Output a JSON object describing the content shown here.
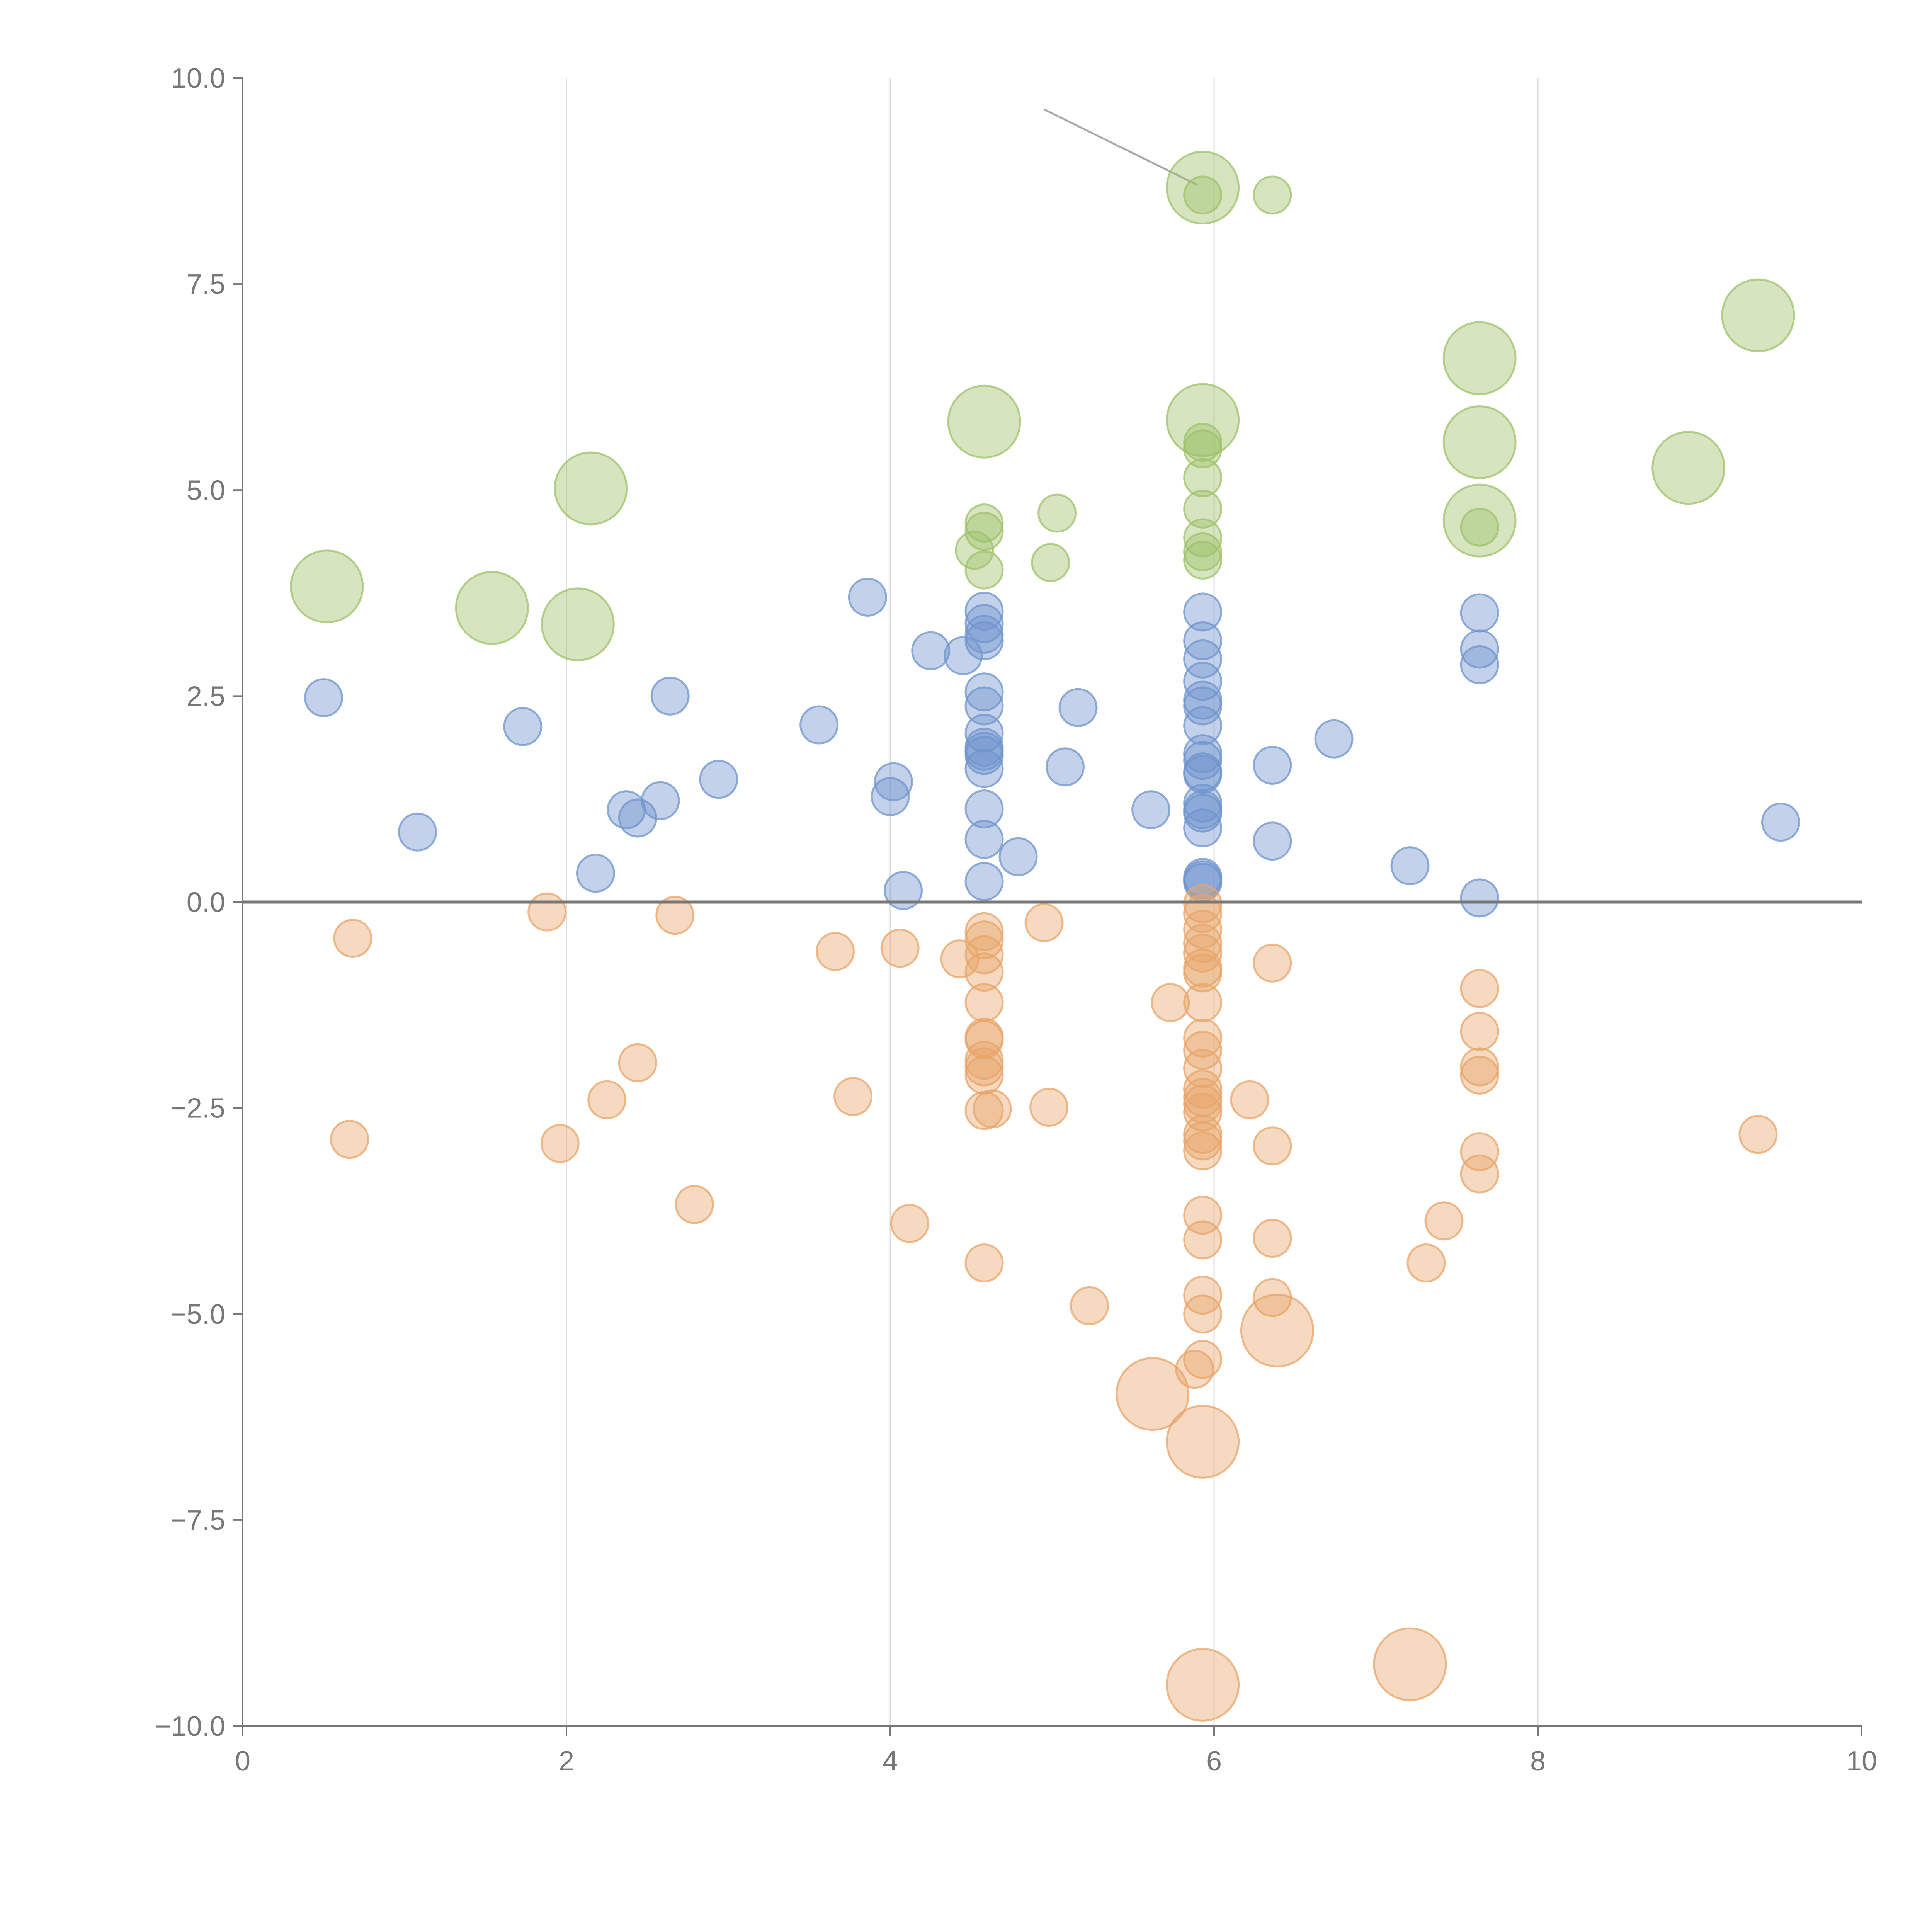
{
  "chart_data": {
    "type": "scatter",
    "title": "",
    "xlabel": "",
    "ylabel": "",
    "xlim": [
      0,
      10
    ],
    "ylim": [
      -10,
      10
    ],
    "x_ticks": [
      0,
      2,
      4,
      6,
      8,
      10
    ],
    "x_tick_labels": [
      "0",
      "2",
      "4",
      "6",
      "8",
      "10"
    ],
    "y_ticks": [
      10,
      7.5,
      5,
      2.5,
      0,
      -2.5,
      -5,
      -7.5,
      -10
    ],
    "y_tick_labels": [
      "10.0",
      "7.5",
      "5.0",
      "2.5",
      "0.0",
      "−2.5",
      "−5.0",
      "−7.5",
      "−10.0"
    ],
    "vertical_grid": true,
    "zero_line": true,
    "legend": "none",
    "callout": {
      "from": [
        4.95,
        9.62
      ],
      "to": [
        5.9,
        8.7
      ]
    },
    "series": [
      {
        "name": "green",
        "color": "#9dc26a",
        "points": [
          {
            "x": 0.52,
            "y": 3.83,
            "size": "large"
          },
          {
            "x": 1.54,
            "y": 3.57,
            "size": "large"
          },
          {
            "x": 2.07,
            "y": 3.37,
            "size": "large"
          },
          {
            "x": 2.15,
            "y": 5.02,
            "size": "large"
          },
          {
            "x": 4.58,
            "y": 5.83,
            "size": "large"
          },
          {
            "x": 4.58,
            "y": 4.6,
            "size": "small"
          },
          {
            "x": 4.58,
            "y": 4.5,
            "size": "small"
          },
          {
            "x": 4.52,
            "y": 4.27,
            "size": "small"
          },
          {
            "x": 4.58,
            "y": 4.03,
            "size": "small"
          },
          {
            "x": 5.03,
            "y": 4.72,
            "size": "small"
          },
          {
            "x": 4.99,
            "y": 4.12,
            "size": "small"
          },
          {
            "x": 5.93,
            "y": 8.67,
            "size": "large"
          },
          {
            "x": 5.93,
            "y": 8.58,
            "size": "small"
          },
          {
            "x": 6.36,
            "y": 8.58,
            "size": "small"
          },
          {
            "x": 5.93,
            "y": 5.85,
            "size": "large"
          },
          {
            "x": 5.93,
            "y": 5.58,
            "size": "small"
          },
          {
            "x": 5.93,
            "y": 5.5,
            "size": "small"
          },
          {
            "x": 5.93,
            "y": 5.15,
            "size": "small"
          },
          {
            "x": 5.93,
            "y": 4.77,
            "size": "small"
          },
          {
            "x": 5.93,
            "y": 4.42,
            "size": "small"
          },
          {
            "x": 5.93,
            "y": 4.25,
            "size": "small"
          },
          {
            "x": 5.93,
            "y": 4.15,
            "size": "small"
          },
          {
            "x": 7.64,
            "y": 6.6,
            "size": "large"
          },
          {
            "x": 7.64,
            "y": 5.58,
            "size": "large"
          },
          {
            "x": 7.64,
            "y": 4.63,
            "size": "large"
          },
          {
            "x": 7.64,
            "y": 4.55,
            "size": "small"
          },
          {
            "x": 8.93,
            "y": 5.27,
            "size": "large"
          },
          {
            "x": 9.36,
            "y": 7.12,
            "size": "large"
          }
        ]
      },
      {
        "name": "blue",
        "color": "#6f94cc",
        "points": [
          {
            "x": 0.5,
            "y": 2.48,
            "size": "small"
          },
          {
            "x": 1.08,
            "y": 0.85,
            "size": "small"
          },
          {
            "x": 1.73,
            "y": 2.13,
            "size": "small"
          },
          {
            "x": 2.18,
            "y": 0.35,
            "size": "small"
          },
          {
            "x": 2.37,
            "y": 1.12,
            "size": "small"
          },
          {
            "x": 2.44,
            "y": 1.02,
            "size": "small"
          },
          {
            "x": 2.58,
            "y": 1.23,
            "size": "small"
          },
          {
            "x": 2.64,
            "y": 2.5,
            "size": "small"
          },
          {
            "x": 2.94,
            "y": 1.49,
            "size": "small"
          },
          {
            "x": 3.56,
            "y": 2.15,
            "size": "small"
          },
          {
            "x": 3.86,
            "y": 3.7,
            "size": "small"
          },
          {
            "x": 4.0,
            "y": 1.28,
            "size": "small"
          },
          {
            "x": 4.02,
            "y": 1.46,
            "size": "small"
          },
          {
            "x": 4.08,
            "y": 0.14,
            "size": "small"
          },
          {
            "x": 4.25,
            "y": 3.05,
            "size": "small"
          },
          {
            "x": 4.45,
            "y": 2.99,
            "size": "small"
          },
          {
            "x": 4.58,
            "y": 3.53,
            "size": "small"
          },
          {
            "x": 4.58,
            "y": 3.38,
            "size": "small"
          },
          {
            "x": 4.58,
            "y": 3.25,
            "size": "small"
          },
          {
            "x": 4.58,
            "y": 3.17,
            "size": "small"
          },
          {
            "x": 4.58,
            "y": 2.55,
            "size": "small"
          },
          {
            "x": 4.58,
            "y": 2.38,
            "size": "small"
          },
          {
            "x": 4.58,
            "y": 2.05,
            "size": "small"
          },
          {
            "x": 4.58,
            "y": 1.88,
            "size": "small"
          },
          {
            "x": 4.58,
            "y": 1.83,
            "size": "small"
          },
          {
            "x": 4.58,
            "y": 1.78,
            "size": "small"
          },
          {
            "x": 4.58,
            "y": 1.62,
            "size": "small"
          },
          {
            "x": 4.58,
            "y": 1.13,
            "size": "small"
          },
          {
            "x": 4.58,
            "y": 0.76,
            "size": "small"
          },
          {
            "x": 4.58,
            "y": 0.25,
            "size": "small"
          },
          {
            "x": 4.79,
            "y": 0.55,
            "size": "small"
          },
          {
            "x": 5.08,
            "y": 1.64,
            "size": "small"
          },
          {
            "x": 5.16,
            "y": 2.36,
            "size": "small"
          },
          {
            "x": 5.61,
            "y": 1.12,
            "size": "small"
          },
          {
            "x": 5.93,
            "y": 3.52,
            "size": "small"
          },
          {
            "x": 5.93,
            "y": 3.17,
            "size": "small"
          },
          {
            "x": 5.93,
            "y": 2.95,
            "size": "small"
          },
          {
            "x": 5.93,
            "y": 2.68,
            "size": "small"
          },
          {
            "x": 5.93,
            "y": 2.45,
            "size": "small"
          },
          {
            "x": 5.93,
            "y": 2.38,
            "size": "small"
          },
          {
            "x": 5.93,
            "y": 2.14,
            "size": "small"
          },
          {
            "x": 5.93,
            "y": 1.8,
            "size": "small"
          },
          {
            "x": 5.93,
            "y": 1.72,
            "size": "small"
          },
          {
            "x": 5.93,
            "y": 1.58,
            "size": "small"
          },
          {
            "x": 5.93,
            "y": 1.55,
            "size": "small"
          },
          {
            "x": 5.93,
            "y": 1.2,
            "size": "small"
          },
          {
            "x": 5.93,
            "y": 1.12,
            "size": "small"
          },
          {
            "x": 5.93,
            "y": 1.08,
            "size": "small"
          },
          {
            "x": 5.93,
            "y": 0.9,
            "size": "small"
          },
          {
            "x": 5.93,
            "y": 0.3,
            "size": "small"
          },
          {
            "x": 5.93,
            "y": 0.27,
            "size": "small"
          },
          {
            "x": 5.93,
            "y": 0.24,
            "size": "small"
          },
          {
            "x": 6.36,
            "y": 1.66,
            "size": "small"
          },
          {
            "x": 6.36,
            "y": 0.74,
            "size": "small"
          },
          {
            "x": 6.74,
            "y": 1.98,
            "size": "small"
          },
          {
            "x": 7.21,
            "y": 0.44,
            "size": "small"
          },
          {
            "x": 7.64,
            "y": 3.51,
            "size": "small"
          },
          {
            "x": 7.64,
            "y": 3.07,
            "size": "small"
          },
          {
            "x": 7.64,
            "y": 2.88,
            "size": "small"
          },
          {
            "x": 7.64,
            "y": 0.05,
            "size": "small"
          },
          {
            "x": 9.5,
            "y": 0.97,
            "size": "small"
          }
        ]
      },
      {
        "name": "orange",
        "color": "#e8a46a",
        "points": [
          {
            "x": 0.68,
            "y": -0.44,
            "size": "small"
          },
          {
            "x": 0.66,
            "y": -2.88,
            "size": "small"
          },
          {
            "x": 1.88,
            "y": -0.12,
            "size": "small"
          },
          {
            "x": 1.96,
            "y": -2.93,
            "size": "small"
          },
          {
            "x": 2.25,
            "y": -2.4,
            "size": "small"
          },
          {
            "x": 2.44,
            "y": -1.95,
            "size": "small"
          },
          {
            "x": 2.67,
            "y": -0.16,
            "size": "small"
          },
          {
            "x": 2.79,
            "y": -3.67,
            "size": "small"
          },
          {
            "x": 3.66,
            "y": -0.6,
            "size": "small"
          },
          {
            "x": 3.77,
            "y": -2.36,
            "size": "small"
          },
          {
            "x": 4.06,
            "y": -0.56,
            "size": "small"
          },
          {
            "x": 4.12,
            "y": -3.9,
            "size": "small"
          },
          {
            "x": 4.43,
            "y": -0.69,
            "size": "small"
          },
          {
            "x": 4.58,
            "y": -0.36,
            "size": "small"
          },
          {
            "x": 4.58,
            "y": -0.46,
            "size": "small"
          },
          {
            "x": 4.58,
            "y": -0.64,
            "size": "small"
          },
          {
            "x": 4.58,
            "y": -0.85,
            "size": "small"
          },
          {
            "x": 4.58,
            "y": -1.22,
            "size": "small"
          },
          {
            "x": 4.58,
            "y": -1.64,
            "size": "small"
          },
          {
            "x": 4.58,
            "y": -1.67,
            "size": "small"
          },
          {
            "x": 4.58,
            "y": -1.92,
            "size": "small"
          },
          {
            "x": 4.58,
            "y": -2.0,
            "size": "small"
          },
          {
            "x": 4.58,
            "y": -2.1,
            "size": "small"
          },
          {
            "x": 4.58,
            "y": -2.53,
            "size": "small"
          },
          {
            "x": 4.63,
            "y": -2.51,
            "size": "small"
          },
          {
            "x": 4.58,
            "y": -4.38,
            "size": "small"
          },
          {
            "x": 4.95,
            "y": -0.25,
            "size": "small"
          },
          {
            "x": 4.98,
            "y": -2.49,
            "size": "small"
          },
          {
            "x": 5.23,
            "y": -4.9,
            "size": "small"
          },
          {
            "x": 5.73,
            "y": -1.22,
            "size": "small"
          },
          {
            "x": 5.93,
            "y": -0.02,
            "size": "small"
          },
          {
            "x": 5.93,
            "y": -0.14,
            "size": "small"
          },
          {
            "x": 5.93,
            "y": -0.33,
            "size": "small"
          },
          {
            "x": 5.93,
            "y": -0.5,
            "size": "small"
          },
          {
            "x": 5.93,
            "y": -0.62,
            "size": "small"
          },
          {
            "x": 5.93,
            "y": -0.8,
            "size": "small"
          },
          {
            "x": 5.93,
            "y": -0.86,
            "size": "small"
          },
          {
            "x": 5.93,
            "y": -1.22,
            "size": "small"
          },
          {
            "x": 5.93,
            "y": -1.65,
            "size": "small"
          },
          {
            "x": 5.93,
            "y": -1.8,
            "size": "small"
          },
          {
            "x": 5.93,
            "y": -2.02,
            "size": "small"
          },
          {
            "x": 5.93,
            "y": -2.27,
            "size": "small"
          },
          {
            "x": 5.93,
            "y": -2.37,
            "size": "small"
          },
          {
            "x": 5.93,
            "y": -2.45,
            "size": "small"
          },
          {
            "x": 5.93,
            "y": -2.55,
            "size": "small"
          },
          {
            "x": 5.93,
            "y": -2.82,
            "size": "small"
          },
          {
            "x": 5.93,
            "y": -2.9,
            "size": "small"
          },
          {
            "x": 5.93,
            "y": -3.02,
            "size": "small"
          },
          {
            "x": 5.93,
            "y": -3.8,
            "size": "small"
          },
          {
            "x": 5.93,
            "y": -4.1,
            "size": "small"
          },
          {
            "x": 5.93,
            "y": -4.77,
            "size": "small"
          },
          {
            "x": 5.93,
            "y": -5.0,
            "size": "small"
          },
          {
            "x": 5.93,
            "y": -5.55,
            "size": "small"
          },
          {
            "x": 5.88,
            "y": -5.67,
            "size": "small"
          },
          {
            "x": 5.62,
            "y": -5.97,
            "size": "large"
          },
          {
            "x": 5.93,
            "y": -6.55,
            "size": "large"
          },
          {
            "x": 5.93,
            "y": -9.5,
            "size": "large"
          },
          {
            "x": 6.22,
            "y": -2.4,
            "size": "small"
          },
          {
            "x": 6.36,
            "y": -0.74,
            "size": "small"
          },
          {
            "x": 6.36,
            "y": -2.96,
            "size": "small"
          },
          {
            "x": 6.36,
            "y": -4.08,
            "size": "small"
          },
          {
            "x": 6.36,
            "y": -4.8,
            "size": "small"
          },
          {
            "x": 6.39,
            "y": -5.2,
            "size": "large"
          },
          {
            "x": 7.21,
            "y": -9.25,
            "size": "large"
          },
          {
            "x": 7.31,
            "y": -4.38,
            "size": "small"
          },
          {
            "x": 7.42,
            "y": -3.87,
            "size": "small"
          },
          {
            "x": 7.64,
            "y": -1.05,
            "size": "small"
          },
          {
            "x": 7.64,
            "y": -1.57,
            "size": "small"
          },
          {
            "x": 7.64,
            "y": -2.0,
            "size": "small"
          },
          {
            "x": 7.64,
            "y": -2.1,
            "size": "small"
          },
          {
            "x": 7.64,
            "y": -3.03,
            "size": "small"
          },
          {
            "x": 7.64,
            "y": -3.3,
            "size": "small"
          },
          {
            "x": 9.36,
            "y": -2.82,
            "size": "small"
          }
        ]
      }
    ]
  }
}
